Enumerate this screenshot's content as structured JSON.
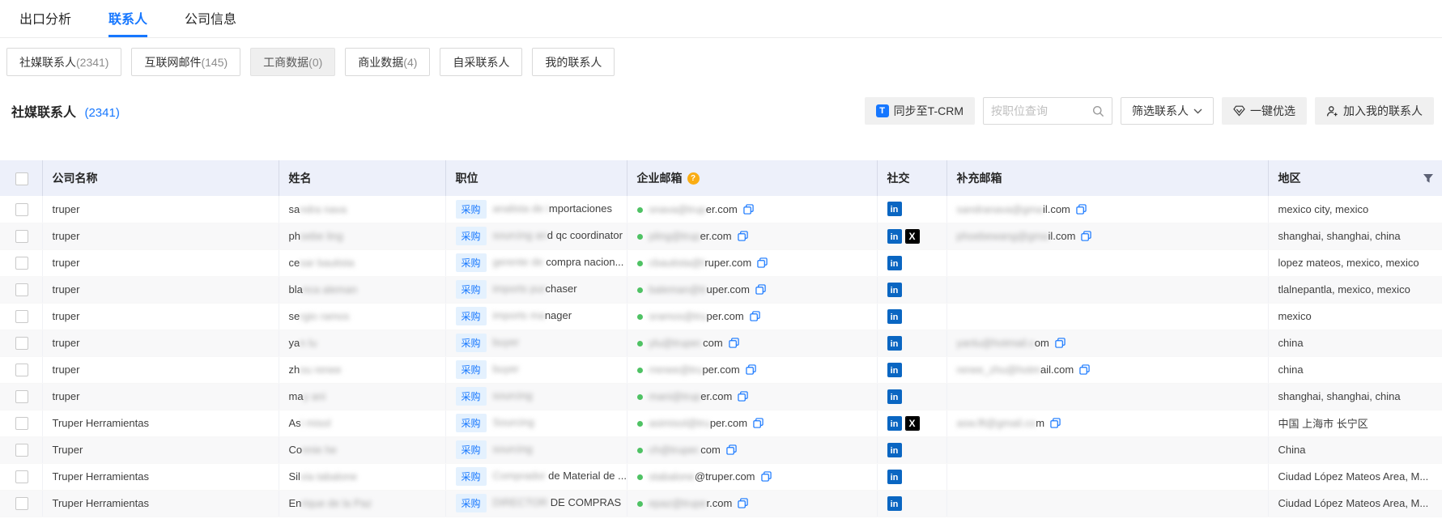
{
  "tabs": [
    {
      "label": "出口分析",
      "active": false
    },
    {
      "label": "联系人",
      "active": true
    },
    {
      "label": "公司信息",
      "active": false
    }
  ],
  "filters": [
    {
      "label": "社媒联系人",
      "count": "(2341)",
      "disabled": false
    },
    {
      "label": "互联网邮件",
      "count": "(145)",
      "disabled": false
    },
    {
      "label": "工商数据",
      "count": "(0)",
      "disabled": true
    },
    {
      "label": "商业数据",
      "count": "(4)",
      "disabled": false
    },
    {
      "label": "自采联系人",
      "count": "",
      "disabled": false
    },
    {
      "label": "我的联系人",
      "count": "",
      "disabled": false
    }
  ],
  "section": {
    "title": "社媒联系人",
    "count": "(2341)"
  },
  "toolbar": {
    "sync_label": "同步至T-CRM",
    "sync_logo_letter": "T",
    "search_placeholder": "按职位查询",
    "filter_label": "筛选联系人",
    "optimize_label": "一键优选",
    "add_label": "加入我的联系人"
  },
  "table": {
    "columns": {
      "company": "公司名称",
      "name": "姓名",
      "position": "职位",
      "email": "企业邮箱",
      "social": "社交",
      "supp_email": "补充邮箱",
      "region": "地区"
    },
    "rows": [
      {
        "company": "truper",
        "name_pre": "sa",
        "name_blur": "ndra nava",
        "tag": "采购",
        "pos_blur": "analista de i",
        "pos_tail": "mportaciones",
        "email_blur": "snava@trup",
        "email_tail": "er.com",
        "supp_blur": "sandranava@gma",
        "supp_tail": "il.com",
        "social": [
          "linkedin"
        ],
        "region": "mexico city, mexico"
      },
      {
        "company": "truper",
        "name_pre": "ph",
        "name_blur": "oebe ling",
        "tag": "采购",
        "pos_blur": "sourcing an",
        "pos_tail": "d qc coordinator",
        "email_blur": "pling@trup",
        "email_tail": "er.com",
        "supp_blur": "phoebewang@gma",
        "supp_tail": "il.com",
        "social": [
          "linkedin",
          "x"
        ],
        "region": "shanghai, shanghai, china"
      },
      {
        "company": "truper",
        "name_pre": "ce",
        "name_blur": "sar bautista",
        "tag": "采购",
        "pos_blur": "gerente de ",
        "pos_tail": "compra nacion...",
        "email_blur": "cbautista@t",
        "email_tail": "ruper.com",
        "supp_blur": "",
        "supp_tail": "",
        "social": [
          "linkedin"
        ],
        "region": "lopez mateos, mexico, mexico"
      },
      {
        "company": "truper",
        "name_pre": "bla",
        "name_blur": "nca aleman",
        "tag": "采购",
        "pos_blur": "imports pur",
        "pos_tail": "chaser",
        "email_blur": "baleman@tr",
        "email_tail": "uper.com",
        "supp_blur": "",
        "supp_tail": "",
        "social": [
          "linkedin"
        ],
        "region": "tlalnepantla, mexico, mexico"
      },
      {
        "company": "truper",
        "name_pre": "se",
        "name_blur": "rgio ramos",
        "tag": "采购",
        "pos_blur": "imports ma",
        "pos_tail": "nager",
        "email_blur": "sramos@tru",
        "email_tail": "per.com",
        "supp_blur": "",
        "supp_tail": "",
        "social": [
          "linkedin"
        ],
        "region": "mexico"
      },
      {
        "company": "truper",
        "name_pre": "ya",
        "name_blur": "n lu",
        "tag": "采购",
        "pos_blur": "buyer",
        "pos_tail": "",
        "email_blur": "ylu@truper.",
        "email_tail": "com",
        "supp_blur": "yanlu@hotmail.c",
        "supp_tail": "om",
        "social": [
          "linkedin"
        ],
        "region": "china"
      },
      {
        "company": "truper",
        "name_pre": "zh",
        "name_blur": "ou renee",
        "tag": "采购",
        "pos_blur": "buyer",
        "pos_tail": "",
        "email_blur": "rrenee@tru",
        "email_tail": "per.com",
        "supp_blur": "renee_zhu@hotm",
        "supp_tail": "ail.com",
        "social": [
          "linkedin"
        ],
        "region": "china"
      },
      {
        "company": "truper",
        "name_pre": "ma",
        "name_blur": "y ani",
        "tag": "采购",
        "pos_blur": "sourcing",
        "pos_tail": "",
        "email_blur": "mani@trup",
        "email_tail": "er.com",
        "supp_blur": "",
        "supp_tail": "",
        "social": [
          "linkedin"
        ],
        "region": "shanghai, shanghai, china"
      },
      {
        "company": "Truper Herramientas",
        "name_pre": "As",
        "name_blur": "i misol",
        "tag": "采购",
        "pos_blur": "Sourcing",
        "pos_tail": "",
        "email_blur": "asimisol@tru",
        "email_tail": "per.com",
        "supp_blur": "asw.lft@gmail.co",
        "supp_tail": "m",
        "social": [
          "linkedin",
          "x"
        ],
        "region": "中国 上海市 长宁区"
      },
      {
        "company": "Truper",
        "name_pre": "Co",
        "name_blur": "nnie he",
        "tag": "采购",
        "pos_blur": "sourcing",
        "pos_tail": "",
        "email_blur": "ch@truper.",
        "email_tail": "com",
        "supp_blur": "",
        "supp_tail": "",
        "social": [
          "linkedin"
        ],
        "region": "China"
      },
      {
        "company": "Truper Herramientas",
        "name_pre": "Sil",
        "name_blur": "via tabalone",
        "tag": "采购",
        "pos_blur": "Comprador ",
        "pos_tail": "de Material de ...",
        "email_blur": "stabalone",
        "email_tail": "@truper.com",
        "supp_blur": "",
        "supp_tail": "",
        "social": [
          "linkedin"
        ],
        "region": "Ciudad López Mateos Area, M..."
      },
      {
        "company": "Truper Herramientas",
        "name_pre": "En",
        "name_blur": "rique de la Paz",
        "tag": "采购",
        "pos_blur": "DIRECTOR ",
        "pos_tail": "DE COMPRAS",
        "email_blur": "epaz@trupe",
        "email_tail": "r.com",
        "supp_blur": "",
        "supp_tail": "",
        "social": [
          "linkedin"
        ],
        "region": "Ciudad López Mateos Area, M..."
      }
    ]
  }
}
